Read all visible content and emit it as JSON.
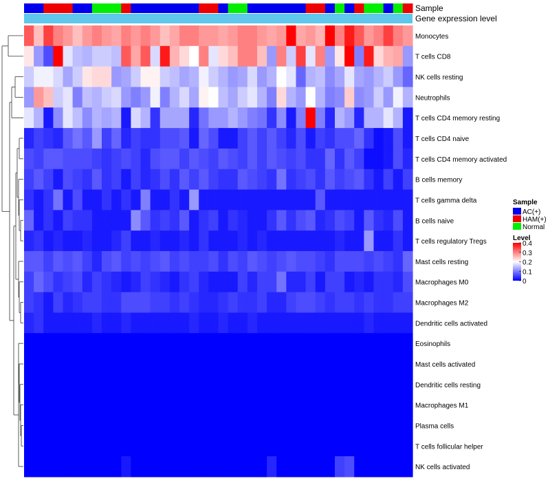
{
  "chart_data": {
    "type": "heatmap",
    "annotation_labels": {
      "sample": "Sample",
      "expression": "Gene expression level"
    },
    "sample_groups": [
      "AC",
      "AC",
      "HAM",
      "HAM",
      "HAM",
      "AC",
      "AC",
      "Normal",
      "Normal",
      "Normal",
      "HAM",
      "AC",
      "AC",
      "AC",
      "AC",
      "AC",
      "AC",
      "AC",
      "HAM",
      "HAM",
      "AC",
      "Normal",
      "Normal",
      "AC",
      "AC",
      "AC",
      "AC",
      "AC",
      "AC",
      "HAM",
      "HAM",
      "AC",
      "Normal",
      "AC",
      "HAM",
      "Normal",
      "Normal",
      "AC",
      "Normal",
      "HAM"
    ],
    "rows": [
      {
        "label": "Monocytes",
        "values": [
          0.33,
          0.25,
          0.35,
          0.3,
          0.28,
          0.25,
          0.28,
          0.3,
          0.28,
          0.27,
          0.3,
          0.28,
          0.3,
          0.28,
          0.25,
          0.27,
          0.3,
          0.3,
          0.28,
          0.28,
          0.27,
          0.28,
          0.3,
          0.3,
          0.28,
          0.27,
          0.28,
          0.4,
          0.27,
          0.28,
          0.26,
          0.4,
          0.3,
          0.38,
          0.33,
          0.28,
          0.3,
          0.35,
          0.3,
          0.28
        ]
      },
      {
        "label": "T cells CD8",
        "values": [
          0.22,
          0.12,
          0.06,
          0.4,
          0.18,
          0.15,
          0.14,
          0.16,
          0.16,
          0.15,
          0.33,
          0.27,
          0.33,
          0.17,
          0.38,
          0.26,
          0.23,
          0.2,
          0.3,
          0.18,
          0.23,
          0.25,
          0.3,
          0.3,
          0.25,
          0.12,
          0.3,
          0.16,
          0.35,
          0.18,
          0.3,
          0.12,
          0.22,
          0.4,
          0.1,
          0.38,
          0.23,
          0.26,
          0.27,
          0.12
        ]
      },
      {
        "label": "NK cells resting",
        "values": [
          0.16,
          0.19,
          0.19,
          0.17,
          0.13,
          0.16,
          0.22,
          0.23,
          0.23,
          0.12,
          0.13,
          0.16,
          0.21,
          0.21,
          0.16,
          0.15,
          0.13,
          0.14,
          0.19,
          0.16,
          0.14,
          0.12,
          0.13,
          0.17,
          0.12,
          0.14,
          0.2,
          0.18,
          0.08,
          0.14,
          0.15,
          0.11,
          0.13,
          0.18,
          0.13,
          0.12,
          0.14,
          0.16,
          0.12,
          0.08
        ]
      },
      {
        "label": "Neutrophils",
        "values": [
          0.12,
          0.28,
          0.25,
          0.16,
          0.18,
          0.1,
          0.15,
          0.14,
          0.16,
          0.17,
          0.12,
          0.1,
          0.12,
          0.19,
          0.1,
          0.14,
          0.17,
          0.13,
          0.21,
          0.2,
          0.15,
          0.13,
          0.16,
          0.18,
          0.14,
          0.1,
          0.23,
          0.14,
          0.12,
          0.2,
          0.14,
          0.1,
          0.11,
          0.24,
          0.11,
          0.12,
          0.16,
          0.12,
          0.19,
          0.14
        ]
      },
      {
        "label": "T cells CD4 memory resting",
        "values": [
          0.18,
          0.14,
          0.02,
          0.11,
          0.18,
          0.15,
          0.11,
          0.14,
          0.13,
          0.14,
          0.02,
          0.17,
          0.14,
          0.04,
          0.13,
          0.13,
          0.13,
          0.03,
          0.09,
          0.12,
          0.12,
          0.14,
          0.12,
          0.1,
          0.09,
          0.04,
          0.11,
          0.02,
          0.1,
          0.4,
          0.1,
          0.03,
          0.14,
          0.12,
          0.03,
          0.14,
          0.14,
          0.18,
          0.14,
          0.02
        ]
      },
      {
        "label": "T cells CD4 naive",
        "values": [
          0.03,
          0.05,
          0.04,
          0.03,
          0.07,
          0.09,
          0.07,
          0.12,
          0.05,
          0.08,
          0.03,
          0.05,
          0.04,
          0.04,
          0.06,
          0.06,
          0.07,
          0.02,
          0.08,
          0.06,
          0.02,
          0.02,
          0.05,
          0.07,
          0.05,
          0.07,
          0.05,
          0.03,
          0.06,
          0.02,
          0.05,
          0.04,
          0.06,
          0.06,
          0.08,
          0.04,
          0.01,
          0.02,
          0.06,
          0.02
        ]
      },
      {
        "label": "T cells CD4 memory activated",
        "values": [
          0.06,
          0.05,
          0.07,
          0.07,
          0.06,
          0.06,
          0.06,
          0.05,
          0.04,
          0.05,
          0.06,
          0.05,
          0.03,
          0.06,
          0.07,
          0.07,
          0.05,
          0.07,
          0.06,
          0.05,
          0.07,
          0.06,
          0.05,
          0.07,
          0.05,
          0.07,
          0.06,
          0.05,
          0.06,
          0.04,
          0.04,
          0.08,
          0.04,
          0.07,
          0.05,
          0.01,
          0.01,
          0.02,
          0.06,
          0.03
        ]
      },
      {
        "label": "B cells memory",
        "values": [
          0.05,
          0.07,
          0.05,
          0.02,
          0.06,
          0.05,
          0.04,
          0.07,
          0.04,
          0.05,
          0.02,
          0.05,
          0.03,
          0.04,
          0.06,
          0.04,
          0.07,
          0.05,
          0.07,
          0.05,
          0.04,
          0.04,
          0.07,
          0.06,
          0.05,
          0.04,
          0.09,
          0.04,
          0.05,
          0.06,
          0.04,
          0.07,
          0.05,
          0.06,
          0.07,
          0.04,
          0.02,
          0.05,
          0.02,
          0.05
        ]
      },
      {
        "label": "T cells gamma delta",
        "values": [
          0.04,
          0.02,
          0.04,
          0.09,
          0.02,
          0.06,
          0.02,
          0.02,
          0.04,
          0.02,
          0.04,
          0.02,
          0.1,
          0.02,
          0.02,
          0.04,
          0.02,
          0.12,
          0.02,
          0.02,
          0.02,
          0.02,
          0.02,
          0.02,
          0.02,
          0.02,
          0.02,
          0.02,
          0.02,
          0.02,
          0.07,
          0.02,
          0.02,
          0.02,
          0.02,
          0.02,
          0.02,
          0.02,
          0.02,
          0.02
        ]
      },
      {
        "label": "B cells naive",
        "values": [
          0.08,
          0.02,
          0.04,
          0.02,
          0.05,
          0.04,
          0.04,
          0.02,
          0.02,
          0.02,
          0.02,
          0.11,
          0.07,
          0.04,
          0.05,
          0.04,
          0.07,
          0.02,
          0.04,
          0.05,
          0.02,
          0.04,
          0.03,
          0.02,
          0.02,
          0.04,
          0.07,
          0.04,
          0.06,
          0.07,
          0.03,
          0.04,
          0.06,
          0.05,
          0.02,
          0.07,
          0.04,
          0.03,
          0.06,
          0.02
        ]
      },
      {
        "label": "T cells regulatory  Tregs",
        "values": [
          0.03,
          0.04,
          0.02,
          0.03,
          0.02,
          0.02,
          0.03,
          0.02,
          0.02,
          0.03,
          0.05,
          0.02,
          0.02,
          0.03,
          0.02,
          0.02,
          0.03,
          0.02,
          0.04,
          0.02,
          0.02,
          0.02,
          0.03,
          0.02,
          0.03,
          0.02,
          0.02,
          0.02,
          0.02,
          0.02,
          0.02,
          0.02,
          0.03,
          0.02,
          0.02,
          0.12,
          0.02,
          0.02,
          0.04,
          0.02
        ]
      },
      {
        "label": "Mast cells resting",
        "values": [
          0.07,
          0.07,
          0.05,
          0.07,
          0.06,
          0.07,
          0.05,
          0.03,
          0.06,
          0.07,
          0.05,
          0.06,
          0.05,
          0.06,
          0.07,
          0.05,
          0.06,
          0.05,
          0.05,
          0.06,
          0.04,
          0.06,
          0.05,
          0.07,
          0.06,
          0.05,
          0.06,
          0.07,
          0.06,
          0.06,
          0.05,
          0.04,
          0.06,
          0.06,
          0.06,
          0.05,
          0.06,
          0.05,
          0.04,
          0.08
        ]
      },
      {
        "label": "Macrophages M0",
        "values": [
          0.05,
          0.08,
          0.06,
          0.04,
          0.05,
          0.06,
          0.03,
          0.05,
          0.04,
          0.03,
          0.02,
          0.03,
          0.05,
          0.04,
          0.03,
          0.02,
          0.04,
          0.05,
          0.03,
          0.02,
          0.02,
          0.02,
          0.05,
          0.03,
          0.05,
          0.05,
          0.09,
          0.03,
          0.03,
          0.05,
          0.02,
          0.05,
          0.05,
          0.02,
          0.03,
          0.02,
          0.04,
          0.04,
          0.03,
          0.06
        ]
      },
      {
        "label": "Macrophages M2",
        "values": [
          0.05,
          0.04,
          0.02,
          0.05,
          0.03,
          0.04,
          0.05,
          0.05,
          0.04,
          0.04,
          0.06,
          0.06,
          0.06,
          0.05,
          0.05,
          0.04,
          0.05,
          0.04,
          0.03,
          0.03,
          0.04,
          0.05,
          0.04,
          0.04,
          0.05,
          0.03,
          0.03,
          0.05,
          0.06,
          0.06,
          0.05,
          0.04,
          0.05,
          0.05,
          0.04,
          0.05,
          0.04,
          0.04,
          0.05,
          0.05
        ]
      },
      {
        "label": "Dendritic cells activated",
        "values": [
          0.03,
          0.04,
          0.02,
          0.02,
          0.02,
          0.02,
          0.02,
          0.03,
          0.02,
          0.02,
          0.03,
          0.02,
          0.02,
          0.02,
          0.02,
          0.02,
          0.02,
          0.03,
          0.02,
          0.02,
          0.03,
          0.02,
          0.02,
          0.03,
          0.02,
          0.02,
          0.02,
          0.02,
          0.02,
          0.02,
          0.02,
          0.02,
          0.02,
          0.02,
          0.02,
          0.03,
          0.02,
          0.02,
          0.02,
          0.02
        ]
      },
      {
        "label": "Eosinophils",
        "values": [
          0,
          0,
          0,
          0,
          0,
          0,
          0,
          0,
          0,
          0,
          0,
          0,
          0,
          0,
          0,
          0,
          0,
          0,
          0,
          0,
          0,
          0,
          0,
          0,
          0,
          0,
          0,
          0,
          0,
          0,
          0,
          0,
          0,
          0,
          0,
          0,
          0,
          0,
          0,
          0
        ]
      },
      {
        "label": "Mast cells activated",
        "values": [
          0,
          0,
          0,
          0,
          0,
          0,
          0,
          0,
          0,
          0,
          0,
          0,
          0,
          0,
          0,
          0,
          0,
          0,
          0,
          0,
          0,
          0,
          0,
          0,
          0,
          0,
          0,
          0,
          0,
          0,
          0,
          0,
          0,
          0,
          0,
          0,
          0,
          0,
          0,
          0
        ]
      },
      {
        "label": "Dendritic cells resting",
        "values": [
          0,
          0,
          0,
          0,
          0,
          0,
          0,
          0,
          0,
          0,
          0,
          0,
          0,
          0,
          0,
          0,
          0,
          0,
          0,
          0,
          0,
          0,
          0,
          0,
          0,
          0,
          0,
          0,
          0,
          0,
          0,
          0,
          0,
          0,
          0,
          0,
          0,
          0,
          0,
          0
        ]
      },
      {
        "label": "Macrophages M1",
        "values": [
          0,
          0,
          0,
          0,
          0,
          0,
          0,
          0,
          0,
          0,
          0,
          0,
          0,
          0,
          0,
          0,
          0,
          0,
          0,
          0,
          0,
          0,
          0,
          0,
          0,
          0,
          0,
          0,
          0,
          0,
          0,
          0,
          0,
          0,
          0,
          0,
          0,
          0,
          0,
          0
        ]
      },
      {
        "label": "Plasma cells",
        "values": [
          0,
          0,
          0,
          0,
          0,
          0,
          0,
          0,
          0,
          0,
          0,
          0,
          0,
          0,
          0,
          0,
          0,
          0,
          0,
          0,
          0,
          0,
          0,
          0,
          0,
          0,
          0,
          0,
          0,
          0,
          0,
          0,
          0,
          0,
          0,
          0,
          0,
          0,
          0,
          0
        ]
      },
      {
        "label": "T cells follicular helper",
        "values": [
          0,
          0,
          0,
          0,
          0,
          0,
          0,
          0,
          0,
          0,
          0,
          0,
          0,
          0,
          0,
          0,
          0,
          0,
          0,
          0,
          0,
          0,
          0,
          0,
          0,
          0,
          0,
          0,
          0,
          0,
          0,
          0,
          0,
          0,
          0,
          0,
          0,
          0,
          0,
          0
        ]
      },
      {
        "label": "NK cells activated",
        "values": [
          0,
          0,
          0,
          0,
          0,
          0,
          0,
          0,
          0,
          0,
          0.02,
          0,
          0,
          0,
          0,
          0,
          0,
          0,
          0,
          0,
          0,
          0,
          0,
          0,
          0,
          0.03,
          0,
          0,
          0,
          0,
          0,
          0,
          0.05,
          0.06,
          0,
          0,
          0,
          0,
          0,
          0
        ]
      }
    ],
    "legend": {
      "sample_title": "Sample",
      "sample_entries": [
        {
          "label": "AC(+)",
          "color": "#0000ee"
        },
        {
          "label": "HAM(+)",
          "color": "#ee0000"
        },
        {
          "label": "Normal",
          "color": "#00ee00"
        }
      ],
      "level_title": "Level",
      "level_ticks": [
        "0.4",
        "0.3",
        "0.2",
        "0.1",
        "0"
      ],
      "vmin": 0,
      "vmax": 0.4
    },
    "colors": {
      "low": "#0000ff",
      "mid": "#ffffff",
      "high": "#ff0000",
      "expression_bar": "#5ec7eb",
      "dendrogram": "#333333"
    }
  }
}
